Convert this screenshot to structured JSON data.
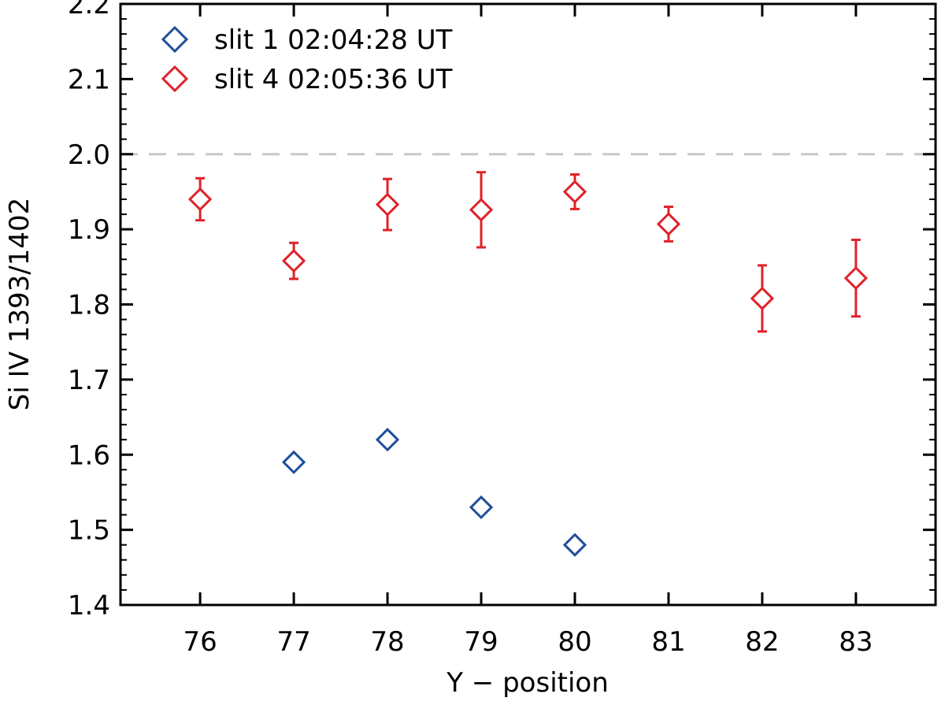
{
  "chart_data": {
    "type": "scatter",
    "title": "",
    "xlabel": "Y − position",
    "ylabel": "Si IV 1393/1402",
    "xlim": [
      75.15,
      83.85
    ],
    "ylim": [
      1.4,
      2.2
    ],
    "xticks": [
      "76",
      "77",
      "78",
      "79",
      "80",
      "81",
      "82",
      "83"
    ],
    "yticks": [
      "1.4",
      "1.5",
      "1.6",
      "1.7",
      "1.8",
      "1.9",
      "2.0",
      "2.1",
      "2.2"
    ],
    "grid": false,
    "legend_position": "top-left",
    "reference_line": {
      "y": 2.0,
      "color": "#c8c8c8",
      "style": "dashed"
    },
    "series": [
      {
        "name": "slit 1 02:04:28 UT",
        "color": "#1f4e9c",
        "marker": "diamond",
        "x": [
          77,
          78,
          79,
          80
        ],
        "y": [
          1.59,
          1.62,
          1.53,
          1.48
        ],
        "yerr": [
          0,
          0,
          0,
          0
        ]
      },
      {
        "name": "slit 4 02:05:36 UT",
        "color": "#e0222a",
        "marker": "diamond",
        "x": [
          76,
          77,
          78,
          79,
          80,
          81,
          82,
          83
        ],
        "y": [
          1.94,
          1.858,
          1.933,
          1.926,
          1.95,
          1.907,
          1.808,
          1.835
        ],
        "yerr": [
          0.028,
          0.024,
          0.034,
          0.05,
          0.023,
          0.023,
          0.044,
          0.051
        ]
      }
    ]
  }
}
